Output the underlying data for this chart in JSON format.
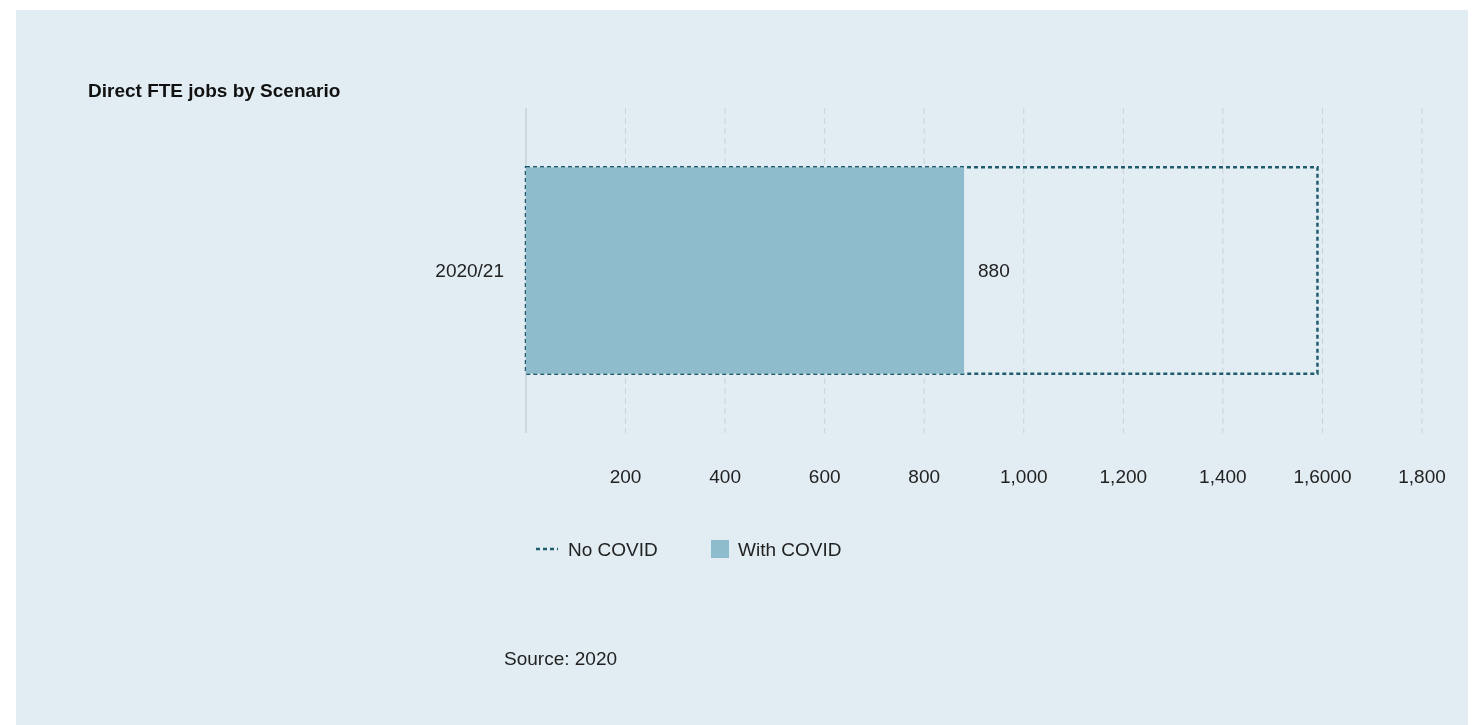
{
  "chart_data": {
    "type": "bar",
    "orientation": "horizontal",
    "title": "Direct FTE jobs by Scenario",
    "categories": [
      "2020/21"
    ],
    "series": [
      {
        "name": "No COVID",
        "color": "#1f5c6e",
        "values": [
          1590
        ],
        "line_style": "dotted"
      },
      {
        "name": "With COVID",
        "color": "#8fbccd",
        "values": [
          880
        ],
        "value_labels": [
          "880"
        ]
      }
    ],
    "xlim": [
      0,
      1800
    ],
    "xticks": [
      {
        "value": 0,
        "label": null
      },
      200,
      400,
      600,
      800,
      {
        "value": 1000,
        "label": "1,000"
      },
      {
        "value": 1200,
        "label": "1,200"
      },
      {
        "value": 1400,
        "label": "1,400"
      },
      {
        "value": 1600,
        "label": "1,6000"
      },
      {
        "value": 1800,
        "label": "1,800"
      }
    ],
    "grid": "x",
    "legend": "bottom",
    "annotations": [
      "Source: 2020"
    ]
  }
}
